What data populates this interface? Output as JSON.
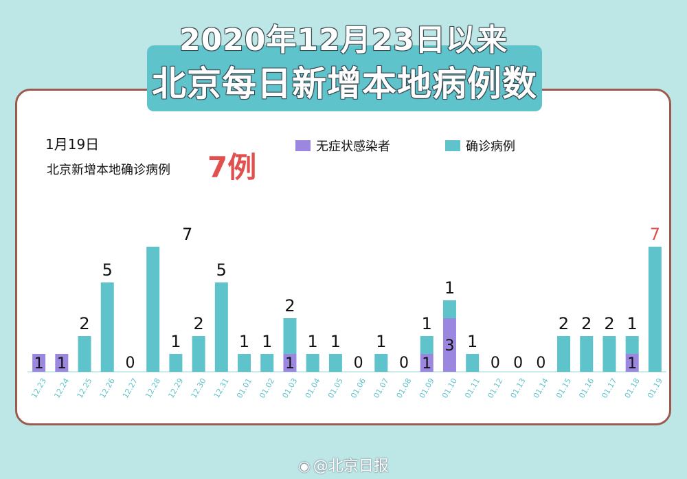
{
  "header": {
    "title_line1": "2020年12月23日以来",
    "title_line2": "北京每日新增本地病例数"
  },
  "info": {
    "date": "1月19日",
    "subtitle": "北京新增本地确诊病例",
    "highlight": "7例"
  },
  "legend": {
    "asymptomatic": "无症状感染者",
    "confirmed": "确诊病例"
  },
  "colors": {
    "asymptomatic": "#9b86e0",
    "confirmed": "#5fc3cc",
    "highlight": "#e0504e",
    "axis_label": "#5fc3cc"
  },
  "watermark": {
    "icon": "weibo-icon",
    "text": "@北京日报"
  },
  "chart_data": {
    "type": "bar",
    "stacked": true,
    "categories": [
      "12.23",
      "12.24",
      "12.25",
      "12.26",
      "12.27",
      "12.28",
      "12.29",
      "12.30",
      "12.31",
      "01.01",
      "01.02",
      "01.03",
      "01.04",
      "01.05",
      "01.06",
      "01.07",
      "01.08",
      "01.09",
      "01.10",
      "01.11",
      "01.12",
      "01.13",
      "01.14",
      "01.15",
      "01.16",
      "01.17",
      "01.18",
      "01.19"
    ],
    "series": [
      {
        "name": "无症状感染者",
        "values": [
          1,
          1,
          0,
          0,
          0,
          0,
          0,
          0,
          0,
          0,
          0,
          1,
          0,
          0,
          0,
          0,
          0,
          1,
          3,
          0,
          0,
          0,
          0,
          0,
          0,
          0,
          1,
          0
        ]
      },
      {
        "name": "确诊病例",
        "values": [
          0,
          0,
          2,
          5,
          0,
          7,
          1,
          2,
          5,
          1,
          1,
          2,
          1,
          1,
          0,
          1,
          0,
          1,
          1,
          1,
          0,
          0,
          0,
          2,
          2,
          2,
          1,
          7
        ]
      }
    ],
    "ylim": [
      0,
      7.5
    ],
    "grid": false
  }
}
